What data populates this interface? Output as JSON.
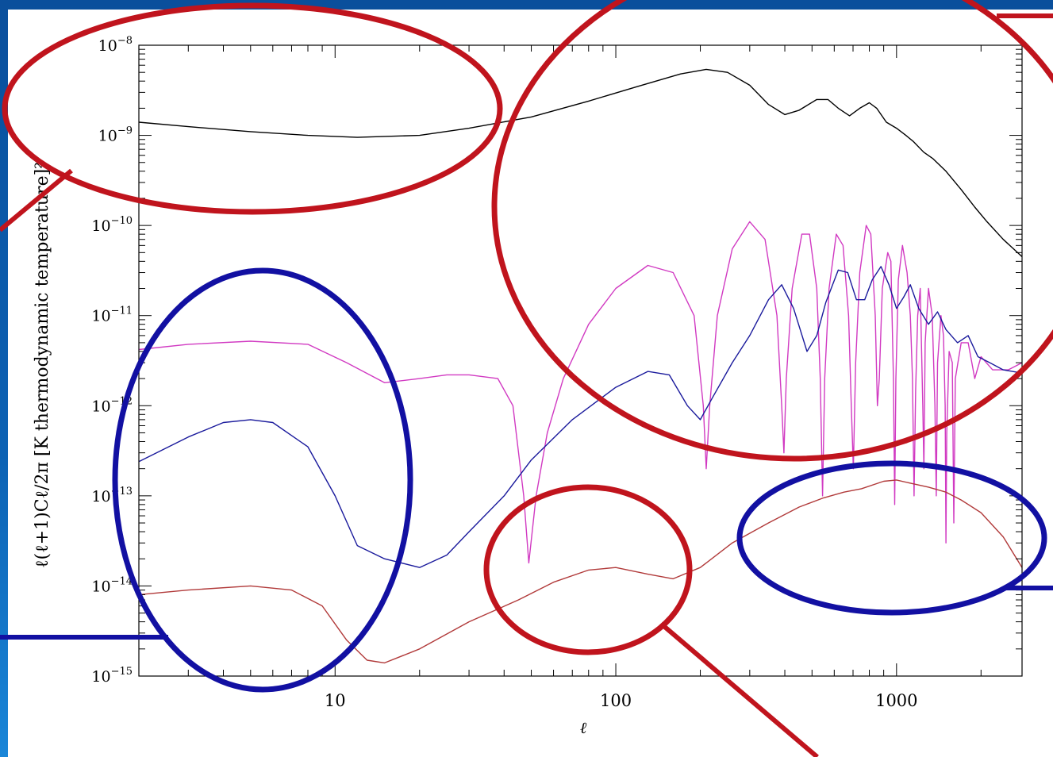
{
  "chart_data": {
    "type": "line",
    "x_scale": "log",
    "y_scale": "log",
    "xlim": [
      2,
      2800
    ],
    "ylim": [
      1e-15,
      1e-08
    ],
    "xlabel": "ℓ",
    "ylabel": "ℓ(ℓ+1)Cℓ/2π [K thermodynamic temperature]²",
    "x_ticks": [
      {
        "value": 10,
        "label": "10"
      },
      {
        "value": 100,
        "label": "100"
      },
      {
        "value": 1000,
        "label": "1000"
      }
    ],
    "y_ticks": [
      {
        "value": 1e-15,
        "base": "10",
        "exp": "−15"
      },
      {
        "value": 1e-14,
        "base": "10",
        "exp": "−14"
      },
      {
        "value": 1e-13,
        "base": "10",
        "exp": "−13"
      },
      {
        "value": 1e-12,
        "base": "10",
        "exp": "−12"
      },
      {
        "value": 1e-11,
        "base": "10",
        "exp": "−11"
      },
      {
        "value": 1e-10,
        "base": "10",
        "exp": "−10"
      },
      {
        "value": 1e-09,
        "base": "10",
        "exp": "−9"
      },
      {
        "value": 1e-08,
        "base": "10",
        "exp": "−8"
      }
    ],
    "grid": false,
    "series": [
      {
        "color": "#000000",
        "points": [
          [
            2,
            1.4e-09
          ],
          [
            3,
            1.25e-09
          ],
          [
            5,
            1.1e-09
          ],
          [
            8,
            1e-09
          ],
          [
            12,
            9.5e-10
          ],
          [
            20,
            1e-09
          ],
          [
            30,
            1.2e-09
          ],
          [
            50,
            1.6e-09
          ],
          [
            80,
            2.4e-09
          ],
          [
            120,
            3.5e-09
          ],
          [
            170,
            4.8e-09
          ],
          [
            210,
            5.4e-09
          ],
          [
            250,
            5e-09
          ],
          [
            300,
            3.6e-09
          ],
          [
            350,
            2.2e-09
          ],
          [
            400,
            1.7e-09
          ],
          [
            450,
            1.9e-09
          ],
          [
            520,
            2.5e-09
          ],
          [
            570,
            2.5e-09
          ],
          [
            620,
            2e-09
          ],
          [
            680,
            1.65e-09
          ],
          [
            740,
            2e-09
          ],
          [
            800,
            2.3e-09
          ],
          [
            850,
            2e-09
          ],
          [
            920,
            1.4e-09
          ],
          [
            1000,
            1.2e-09
          ],
          [
            1080,
            1e-09
          ],
          [
            1150,
            8.5e-10
          ],
          [
            1250,
            6.5e-10
          ],
          [
            1350,
            5.5e-10
          ],
          [
            1500,
            4e-10
          ],
          [
            1700,
            2.5e-10
          ],
          [
            1900,
            1.6e-10
          ],
          [
            2100,
            1.1e-10
          ],
          [
            2400,
            7e-11
          ],
          [
            2800,
            4.5e-11
          ]
        ]
      },
      {
        "color": "#d13ac2",
        "points": [
          [
            2,
            4.2e-12
          ],
          [
            3,
            4.8e-12
          ],
          [
            5,
            5.2e-12
          ],
          [
            8,
            4.8e-12
          ],
          [
            11,
            3e-12
          ],
          [
            15,
            1.8e-12
          ],
          [
            20,
            2e-12
          ],
          [
            25,
            2.2e-12
          ],
          [
            30,
            2.2e-12
          ],
          [
            38,
            2e-12
          ],
          [
            43,
            1e-12
          ],
          [
            47,
            1e-13
          ],
          [
            49,
            1.8e-14
          ],
          [
            52,
            1e-13
          ],
          [
            57,
            5e-13
          ],
          [
            65,
            2e-12
          ],
          [
            80,
            8e-12
          ],
          [
            100,
            2e-11
          ],
          [
            130,
            3.6e-11
          ],
          [
            160,
            3e-11
          ],
          [
            190,
            1e-11
          ],
          [
            205,
            1e-12
          ],
          [
            210,
            2e-13
          ],
          [
            216,
            1e-12
          ],
          [
            230,
            1e-11
          ],
          [
            260,
            5.5e-11
          ],
          [
            300,
            1.1e-10
          ],
          [
            340,
            7e-11
          ],
          [
            375,
            1e-11
          ],
          [
            390,
            1e-12
          ],
          [
            397,
            3e-13
          ],
          [
            405,
            2e-12
          ],
          [
            425,
            2e-11
          ],
          [
            460,
            8e-11
          ],
          [
            490,
            8e-11
          ],
          [
            520,
            2e-11
          ],
          [
            535,
            2e-12
          ],
          [
            545,
            1e-13
          ],
          [
            555,
            2e-12
          ],
          [
            575,
            2e-11
          ],
          [
            610,
            8e-11
          ],
          [
            645,
            6e-11
          ],
          [
            675,
            1e-11
          ],
          [
            690,
            1e-12
          ],
          [
            702,
            2e-13
          ],
          [
            715,
            3e-12
          ],
          [
            740,
            3e-11
          ],
          [
            780,
            1e-10
          ],
          [
            810,
            8e-11
          ],
          [
            840,
            1e-11
          ],
          [
            855,
            1e-12
          ],
          [
            868,
            2e-12
          ],
          [
            890,
            2e-11
          ],
          [
            930,
            5e-11
          ],
          [
            955,
            4e-11
          ],
          [
            975,
            2e-12
          ],
          [
            985,
            8e-14
          ],
          [
            995,
            2e-12
          ],
          [
            1015,
            2.5e-11
          ],
          [
            1050,
            6e-11
          ],
          [
            1090,
            3e-11
          ],
          [
            1120,
            1e-11
          ],
          [
            1140,
            2e-12
          ],
          [
            1155,
            1e-13
          ],
          [
            1170,
            1.5e-12
          ],
          [
            1190,
            1e-11
          ],
          [
            1215,
            2e-11
          ],
          [
            1240,
            1e-12
          ],
          [
            1252,
            2e-13
          ],
          [
            1265,
            5e-12
          ],
          [
            1300,
            2e-11
          ],
          [
            1340,
            1e-11
          ],
          [
            1370,
            1e-12
          ],
          [
            1385,
            1e-13
          ],
          [
            1400,
            3e-12
          ],
          [
            1440,
            1e-11
          ],
          [
            1470,
            6e-12
          ],
          [
            1490,
            1e-12
          ],
          [
            1500,
            3e-14
          ],
          [
            1510,
            5e-13
          ],
          [
            1540,
            4e-12
          ],
          [
            1580,
            3e-12
          ],
          [
            1600,
            5e-14
          ],
          [
            1620,
            2e-12
          ],
          [
            1700,
            5e-12
          ],
          [
            1800,
            5e-12
          ],
          [
            1900,
            2e-12
          ],
          [
            2000,
            3.5e-12
          ],
          [
            2200,
            2.5e-12
          ],
          [
            2500,
            2.5e-12
          ],
          [
            2800,
            3e-12
          ]
        ]
      },
      {
        "color": "#1a1a9c",
        "points": [
          [
            2,
            2.4e-13
          ],
          [
            3,
            4.5e-13
          ],
          [
            4,
            6.5e-13
          ],
          [
            5,
            7e-13
          ],
          [
            6,
            6.5e-13
          ],
          [
            8,
            3.5e-13
          ],
          [
            10,
            1e-13
          ],
          [
            12,
            2.8e-14
          ],
          [
            15,
            2e-14
          ],
          [
            20,
            1.6e-14
          ],
          [
            25,
            2.2e-14
          ],
          [
            30,
            4e-14
          ],
          [
            40,
            1e-13
          ],
          [
            50,
            2.5e-13
          ],
          [
            70,
            7e-13
          ],
          [
            100,
            1.6e-12
          ],
          [
            130,
            2.4e-12
          ],
          [
            155,
            2.2e-12
          ],
          [
            180,
            1e-12
          ],
          [
            200,
            7e-13
          ],
          [
            220,
            1.2e-12
          ],
          [
            260,
            3e-12
          ],
          [
            300,
            6e-12
          ],
          [
            350,
            1.5e-11
          ],
          [
            390,
            2.2e-11
          ],
          [
            430,
            1.2e-11
          ],
          [
            480,
            4e-12
          ],
          [
            520,
            6e-12
          ],
          [
            560,
            1.4e-11
          ],
          [
            620,
            3.2e-11
          ],
          [
            670,
            3e-11
          ],
          [
            720,
            1.5e-11
          ],
          [
            770,
            1.5e-11
          ],
          [
            820,
            2.5e-11
          ],
          [
            880,
            3.5e-11
          ],
          [
            940,
            2.2e-11
          ],
          [
            1000,
            1.2e-11
          ],
          [
            1060,
            1.6e-11
          ],
          [
            1120,
            2.2e-11
          ],
          [
            1200,
            1.2e-11
          ],
          [
            1300,
            8e-12
          ],
          [
            1400,
            1.1e-11
          ],
          [
            1500,
            7e-12
          ],
          [
            1650,
            5e-12
          ],
          [
            1800,
            6e-12
          ],
          [
            1950,
            3.5e-12
          ],
          [
            2150,
            3e-12
          ],
          [
            2400,
            2.5e-12
          ],
          [
            2800,
            2.3e-12
          ]
        ]
      },
      {
        "color": "#b13a3a",
        "points": [
          [
            2,
            8e-15
          ],
          [
            3,
            9e-15
          ],
          [
            5,
            1e-14
          ],
          [
            7,
            9e-15
          ],
          [
            9,
            6e-15
          ],
          [
            11,
            2.5e-15
          ],
          [
            13,
            1.5e-15
          ],
          [
            15,
            1.4e-15
          ],
          [
            20,
            2e-15
          ],
          [
            30,
            4e-15
          ],
          [
            45,
            7e-15
          ],
          [
            60,
            1.1e-14
          ],
          [
            80,
            1.5e-14
          ],
          [
            100,
            1.6e-14
          ],
          [
            130,
            1.35e-14
          ],
          [
            160,
            1.2e-14
          ],
          [
            200,
            1.6e-14
          ],
          [
            260,
            3e-14
          ],
          [
            350,
            5e-14
          ],
          [
            450,
            7.5e-14
          ],
          [
            550,
            9.5e-14
          ],
          [
            650,
            1.1e-13
          ],
          [
            750,
            1.2e-13
          ],
          [
            900,
            1.45e-13
          ],
          [
            1000,
            1.5e-13
          ],
          [
            1100,
            1.4e-13
          ],
          [
            1300,
            1.25e-13
          ],
          [
            1500,
            1.1e-13
          ],
          [
            1700,
            9e-14
          ],
          [
            2000,
            6.5e-14
          ],
          [
            2400,
            3.5e-14
          ],
          [
            2800,
            1.6e-14
          ]
        ]
      }
    ]
  },
  "annotations": {
    "ellipse_red_color": "#c0141d",
    "ellipse_blue_color": "#1210a2",
    "line_red_color": "#c0141d",
    "line_blue_color": "#1210a2"
  }
}
